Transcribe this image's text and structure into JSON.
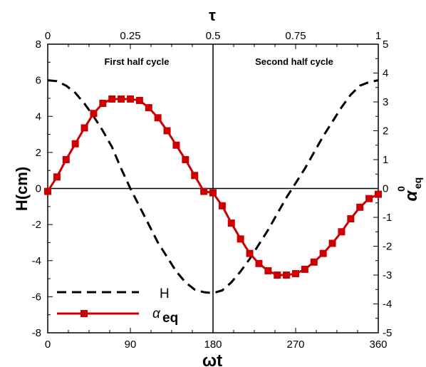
{
  "chart_data": {
    "type": "line",
    "title": "",
    "xlabel": "ωt",
    "x_top_label": "τ",
    "ylabel_left": "H(cm)",
    "ylabel_right": {
      "main": "α",
      "sub": "eq",
      "sup": "0"
    },
    "x_ticks": [
      "0",
      "90",
      "180",
      "270",
      "360"
    ],
    "x_top_ticks": [
      "0",
      "0.25",
      "0.5",
      "0.75",
      "1"
    ],
    "y_left_ticks": [
      "-8",
      "-6",
      "-4",
      "-2",
      "0",
      "2",
      "4",
      "6",
      "8"
    ],
    "y_right_ticks": [
      "-5",
      "-4",
      "-3",
      "-2",
      "-1",
      "0",
      "1",
      "2",
      "3",
      "4",
      "5"
    ],
    "xlim": [
      0,
      360
    ],
    "ylim_left": [
      -8,
      8
    ],
    "ylim_right": [
      -5,
      5
    ],
    "annotations": [
      "First half cycle",
      "Second half cycle"
    ],
    "legend": {
      "placement": "bottom-left",
      "entries": [
        "H",
        "α_eq"
      ]
    },
    "series": [
      {
        "name": "H",
        "axis": "left",
        "style": "dashed",
        "color": "#000000",
        "x": [
          0,
          10,
          20,
          30,
          40,
          50,
          60,
          70,
          80,
          90,
          100,
          110,
          120,
          130,
          140,
          150,
          160,
          170,
          180,
          190,
          200,
          210,
          220,
          230,
          240,
          250,
          260,
          270,
          280,
          290,
          300,
          310,
          320,
          330,
          340,
          350,
          360
        ],
        "y": [
          6.0,
          5.95,
          5.7,
          5.3,
          4.7,
          4.0,
          3.2,
          2.3,
          1.1,
          0.0,
          -1.0,
          -2.0,
          -3.0,
          -3.8,
          -4.6,
          -5.2,
          -5.6,
          -5.75,
          -5.8,
          -5.65,
          -5.2,
          -4.6,
          -3.9,
          -3.1,
          -2.3,
          -1.4,
          -0.5,
          0.3,
          1.1,
          2.0,
          2.9,
          3.7,
          4.5,
          5.2,
          5.7,
          5.9,
          6.0
        ]
      },
      {
        "name": "α_eq",
        "axis": "right",
        "style": "solid-square-markers",
        "color": "#cc0000",
        "x": [
          0,
          10,
          20,
          30,
          40,
          50,
          60,
          70,
          80,
          90,
          100,
          110,
          120,
          130,
          140,
          150,
          160,
          170,
          180,
          190,
          200,
          210,
          220,
          230,
          240,
          250,
          260,
          270,
          280,
          290,
          300,
          310,
          320,
          330,
          340,
          350,
          360
        ],
        "y": [
          -0.1,
          0.4,
          1.0,
          1.55,
          2.1,
          2.6,
          2.95,
          3.1,
          3.1,
          3.1,
          3.05,
          2.8,
          2.45,
          2.0,
          1.5,
          1.0,
          0.45,
          -0.1,
          -0.15,
          -0.6,
          -1.2,
          -1.75,
          -2.25,
          -2.6,
          -2.85,
          -3.0,
          -3.0,
          -2.95,
          -2.8,
          -2.55,
          -2.25,
          -1.9,
          -1.5,
          -1.05,
          -0.65,
          -0.35,
          -0.2
        ]
      }
    ]
  }
}
